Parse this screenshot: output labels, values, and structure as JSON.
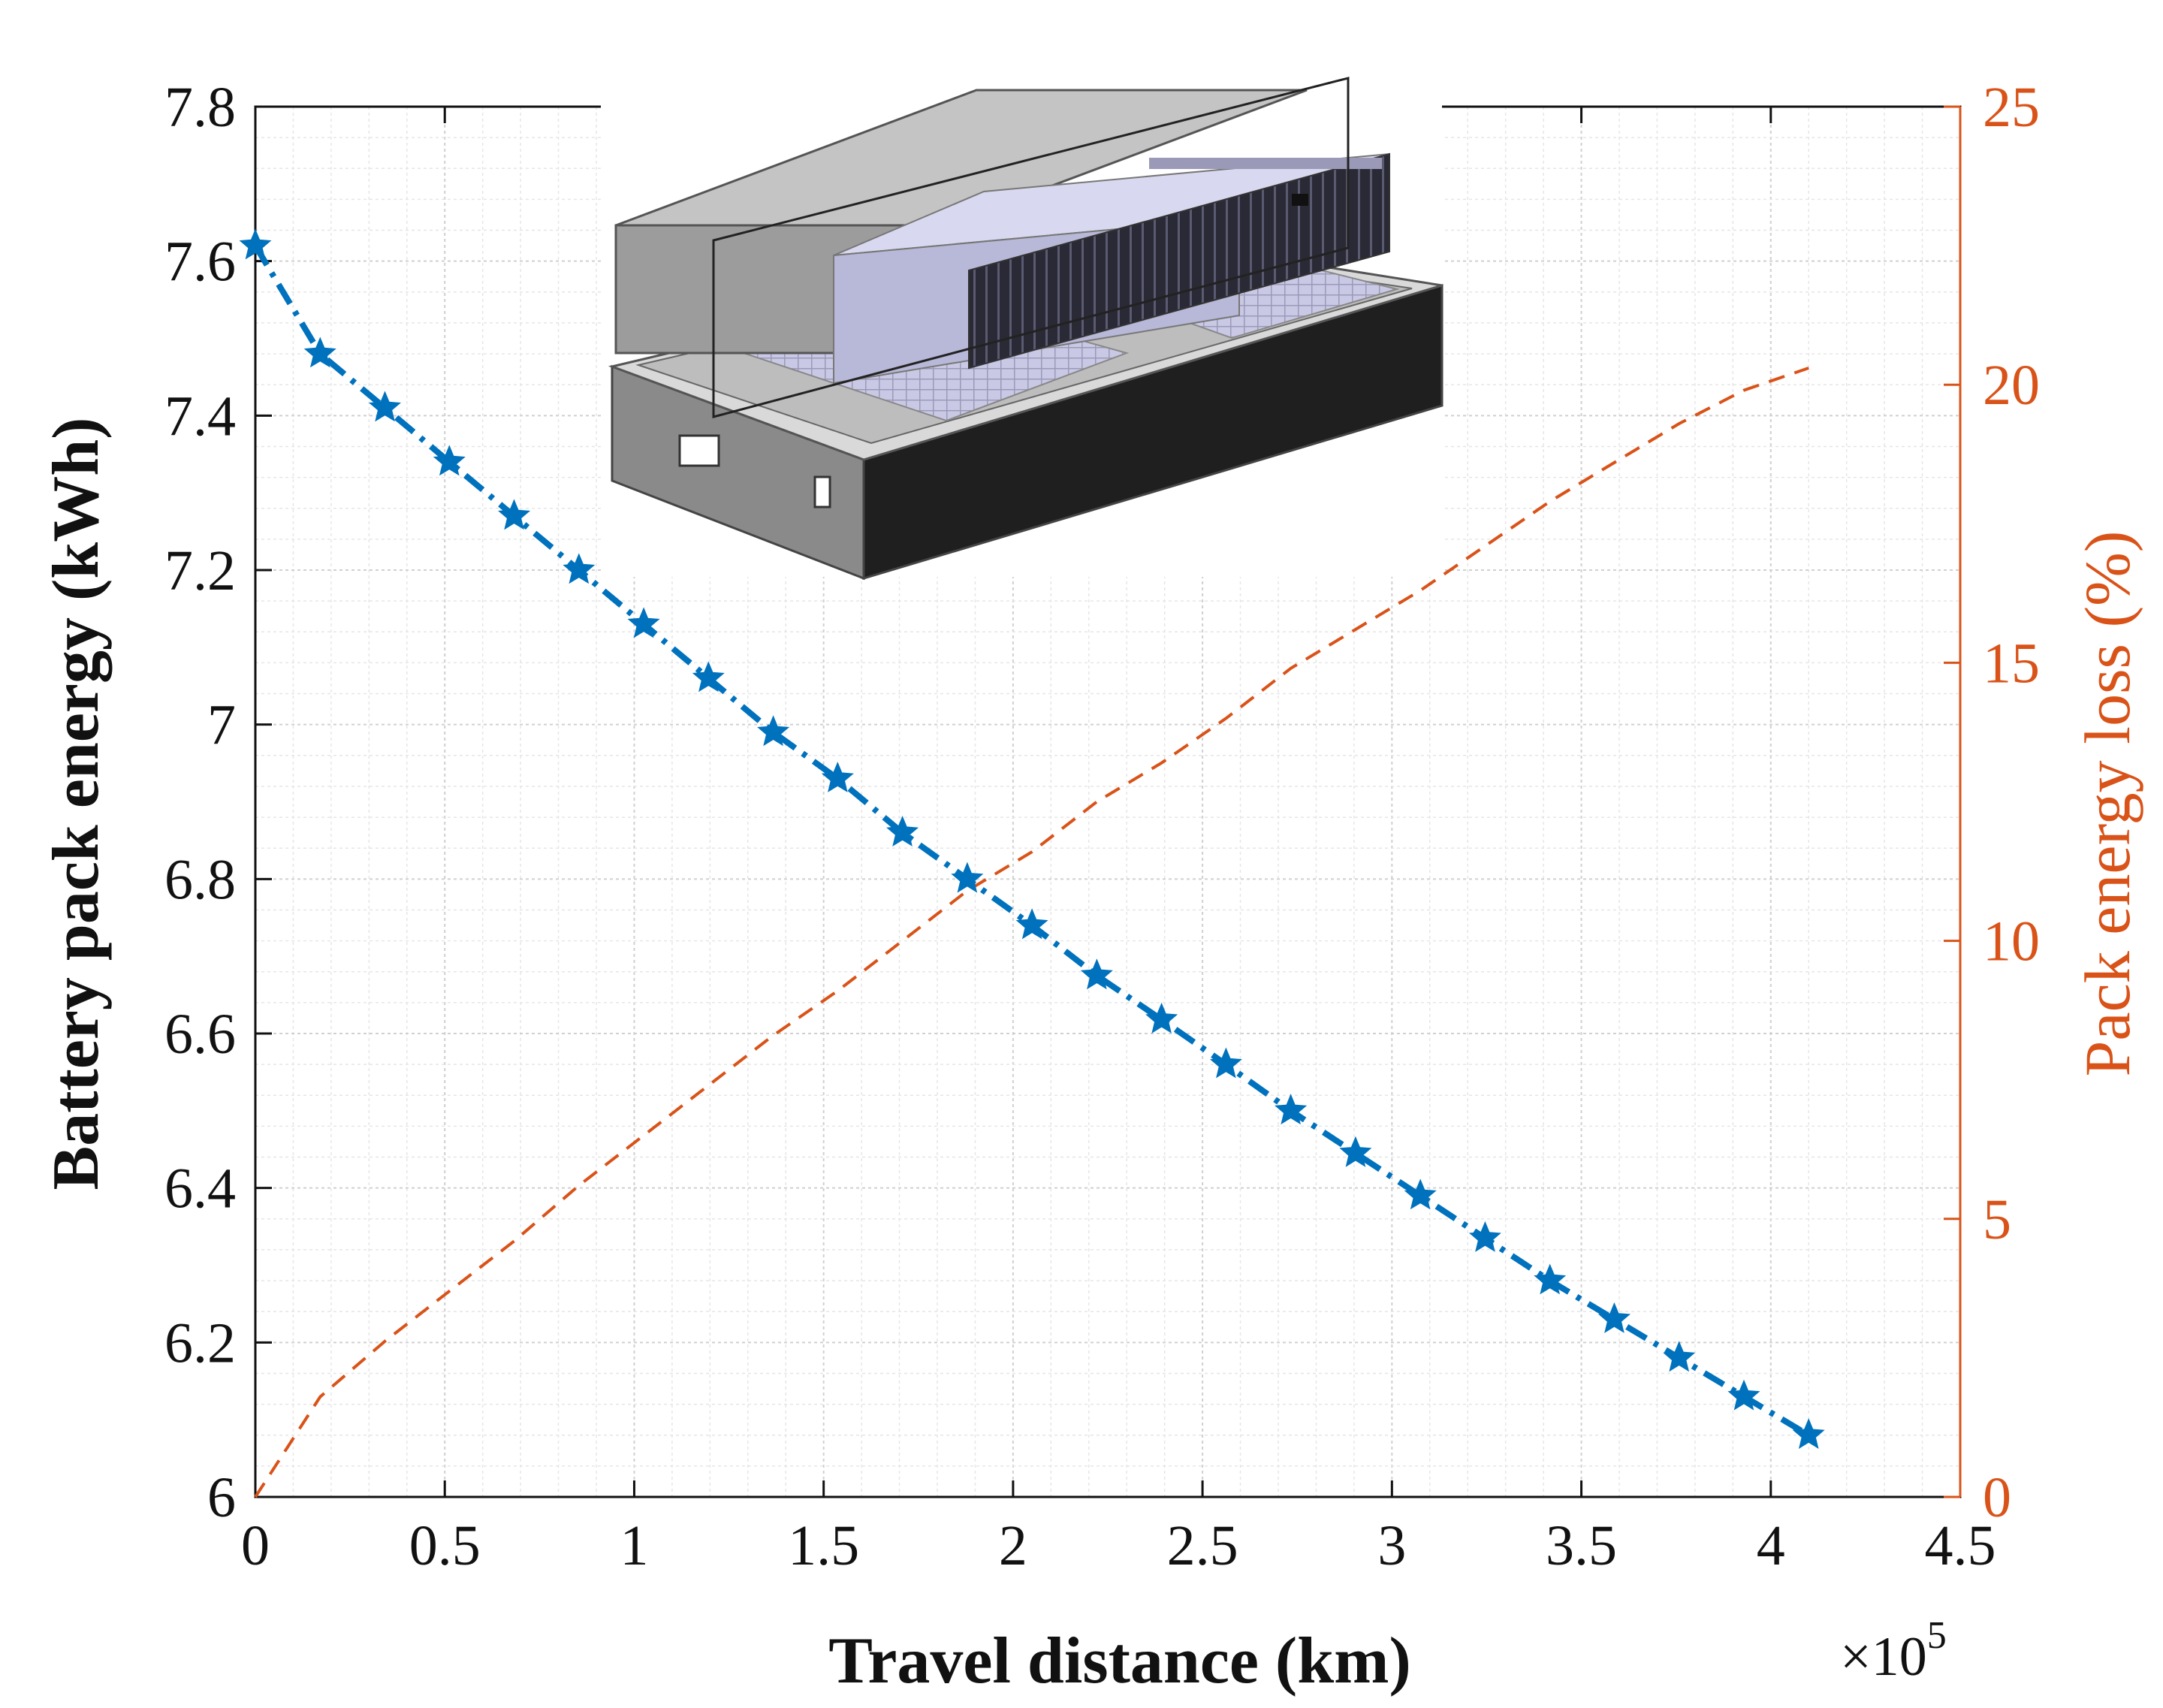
{
  "chart_data": {
    "type": "line",
    "xlabel": "Travel distance (km)",
    "ylabel_left": "Battery pack energy (kWh)",
    "ylabel_right": "Pack energy loss (%)",
    "x_multiplier_base": "×10",
    "x_multiplier_exp": "5",
    "xlim": [
      0,
      4.5
    ],
    "ylim_left": [
      6,
      7.8
    ],
    "ylim_right": [
      0,
      25
    ],
    "xticks": [
      0,
      0.5,
      1,
      1.5,
      2,
      2.5,
      3,
      3.5,
      4,
      4.5
    ],
    "xtick_labels": [
      "0",
      "0.5",
      "1",
      "1.5",
      "2",
      "2.5",
      "3",
      "3.5",
      "4",
      "4.5"
    ],
    "yticks_left": [
      6,
      6.2,
      6.4,
      6.6,
      6.8,
      7,
      7.2,
      7.4,
      7.6,
      7.8
    ],
    "ytick_labels_left": [
      "6",
      "6.2",
      "6.4",
      "6.6",
      "6.8",
      "7",
      "7.2",
      "7.4",
      "7.6",
      "7.8"
    ],
    "yticks_right": [
      0,
      5,
      10,
      15,
      20,
      25
    ],
    "ytick_labels_right": [
      "0",
      "5",
      "10",
      "15",
      "20",
      "25"
    ],
    "grid": true,
    "x": [
      0,
      0.171,
      0.342,
      0.512,
      0.683,
      0.854,
      1.025,
      1.196,
      1.367,
      1.537,
      1.708,
      1.879,
      2.05,
      2.221,
      2.392,
      2.562,
      2.733,
      2.904,
      3.075,
      3.246,
      3.417,
      3.587,
      3.758,
      3.929,
      4.1
    ],
    "series": [
      {
        "axis": "left",
        "color": "#0072bd",
        "style": "dash-dot with star markers",
        "values": [
          7.62,
          7.48,
          7.41,
          7.34,
          7.27,
          7.2,
          7.13,
          7.06,
          6.99,
          6.93,
          6.86,
          6.8,
          6.74,
          6.675,
          6.618,
          6.56,
          6.5,
          6.445,
          6.39,
          6.335,
          6.28,
          6.23,
          6.18,
          6.13,
          6.08
        ]
      },
      {
        "axis": "right",
        "color": "#d95319",
        "style": "dashed",
        "values": [
          0,
          1.8,
          2.8,
          3.7,
          4.6,
          5.6,
          6.5,
          7.4,
          8.3,
          9.1,
          10.0,
          10.9,
          11.6,
          12.5,
          13.2,
          14.0,
          14.9,
          15.6,
          16.3,
          17.1,
          17.9,
          18.6,
          19.3,
          19.9,
          20.3
        ]
      }
    ],
    "inset": "3D battery pack model"
  }
}
